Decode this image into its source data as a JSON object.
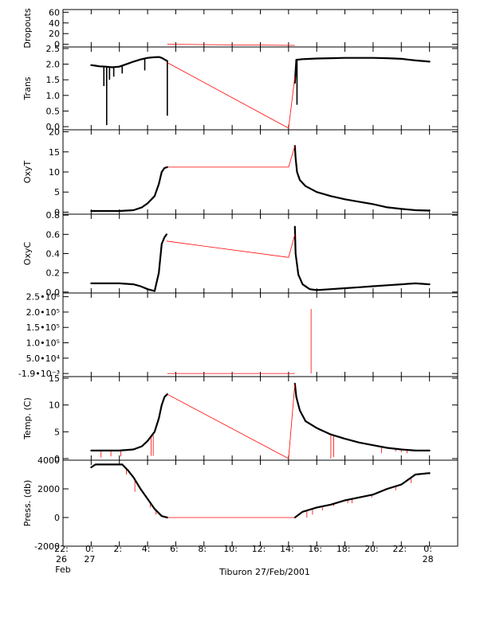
{
  "chart_data": [
    {
      "type": "line",
      "ylabel": "Dropouts",
      "yticks": [
        "60",
        "40",
        "20",
        "0"
      ],
      "ylim": [
        -5,
        65
      ],
      "series": [
        {
          "color": "#000000",
          "x": [
            0.0,
            5.4,
            14.45,
            24.0
          ],
          "y": [
            0,
            0,
            0,
            0
          ]
        },
        {
          "color": "#ff0000",
          "x": [
            5.4,
            14.45
          ],
          "y": [
            0,
            -2
          ]
        }
      ]
    },
    {
      "type": "line",
      "ylabel": "Trans",
      "yticks": [
        "2.5",
        "2.0",
        "1.5",
        "1.0",
        "0.5",
        "0.0"
      ],
      "ylim": [
        -0.1,
        2.55
      ],
      "series": [
        {
          "color": "#000000",
          "x": [
            0.0,
            0.3,
            0.6,
            1.0,
            1.5,
            2.0,
            2.5,
            3.0,
            3.5,
            4.0,
            4.4,
            4.8,
            5.0,
            5.4,
            14.45,
            14.55,
            15.0,
            16.0,
            17.0,
            18.0,
            19.0,
            20.0,
            21.0,
            22.0,
            23.0,
            24.0
          ],
          "y": [
            1.97,
            1.95,
            1.93,
            1.92,
            1.9,
            1.92,
            2.0,
            2.08,
            2.15,
            2.2,
            2.22,
            2.23,
            2.2,
            2.1,
            1.4,
            2.14,
            2.16,
            2.18,
            2.19,
            2.2,
            2.2,
            2.2,
            2.19,
            2.17,
            2.12,
            2.08
          ]
        },
        {
          "color": "#ff0000",
          "x": [
            5.4,
            14.0,
            14.45
          ],
          "y": [
            2.05,
            -0.05,
            1.6
          ]
        }
      ],
      "spikes": [
        {
          "color": "#000000",
          "x": [
            0.9,
            1.1,
            1.3,
            1.6,
            2.2,
            3.8,
            5.4,
            14.6
          ],
          "y": [
            1.3,
            0.05,
            1.5,
            1.6,
            1.7,
            1.8,
            0.35,
            0.7
          ]
        }
      ]
    },
    {
      "type": "line",
      "ylabel": "OxyT",
      "yticks": [
        "20",
        "15",
        "10",
        "5",
        "0"
      ],
      "ylim": [
        -0.5,
        20.5
      ],
      "series": [
        {
          "color": "#000000",
          "x": [
            0.0,
            2.0,
            3.0,
            3.6,
            4.0,
            4.5,
            4.8,
            5.0,
            5.2,
            5.4,
            14.45,
            14.5,
            14.6,
            14.8,
            15.2,
            16.0,
            17.0,
            18.0,
            19.0,
            20.0,
            21.0,
            22.0,
            23.0,
            24.0
          ],
          "y": [
            0.3,
            0.3,
            0.5,
            1.2,
            2.2,
            4.0,
            7.0,
            10.0,
            11.0,
            11.2,
            16.5,
            13.5,
            10.0,
            8.0,
            6.5,
            5.0,
            4.0,
            3.2,
            2.6,
            2.0,
            1.2,
            0.8,
            0.5,
            0.4
          ]
        },
        {
          "color": "#ff0000",
          "x": [
            5.4,
            14.0,
            14.45
          ],
          "y": [
            11.2,
            11.2,
            16.5
          ]
        }
      ]
    },
    {
      "type": "line",
      "ylabel": "OxyC",
      "yticks": [
        "0.8",
        "0.6",
        "0.4",
        "0.2",
        "0.0"
      ],
      "ylim": [
        -0.01,
        0.81
      ],
      "series": [
        {
          "color": "#000000",
          "x": [
            0.0,
            2.0,
            3.0,
            3.5,
            4.0,
            4.5,
            4.8,
            5.0,
            5.2,
            5.35,
            14.45,
            14.5,
            14.7,
            15.0,
            15.5,
            16.0,
            17.0,
            18.0,
            19.0,
            20.0,
            21.0,
            22.0,
            23.0,
            24.0
          ],
          "y": [
            0.09,
            0.09,
            0.08,
            0.06,
            0.03,
            0.01,
            0.2,
            0.5,
            0.57,
            0.6,
            0.68,
            0.4,
            0.18,
            0.08,
            0.03,
            0.02,
            0.03,
            0.04,
            0.05,
            0.06,
            0.07,
            0.08,
            0.09,
            0.08
          ]
        },
        {
          "color": "#ff0000",
          "x": [
            5.35,
            14.0,
            14.45
          ],
          "y": [
            0.53,
            0.36,
            0.6
          ]
        }
      ]
    },
    {
      "type": "line",
      "ylabel": "",
      "yticks": [
        "2.5•10⁵",
        "2.0•10⁵",
        "1.5•10⁵",
        "1.0•10⁵",
        "5.0•10⁴",
        "-1.9•10⁻³"
      ],
      "ylim": [
        -10000,
        262000
      ],
      "series": [
        {
          "color": "#000000",
          "x": [
            0.0,
            5.4,
            14.45,
            24.0
          ],
          "y": [
            0,
            0,
            0,
            0
          ]
        },
        {
          "color": "#ff0000",
          "x": [
            5.4,
            14.45
          ],
          "y": [
            0,
            0
          ]
        }
      ],
      "spikes": [
        {
          "color": "#ff0000",
          "x": [
            15.6
          ],
          "y": [
            210000
          ]
        }
      ]
    },
    {
      "type": "line",
      "ylabel": "Temp. (C)",
      "yticks": [
        "15",
        "10",
        "5",
        "0"
      ],
      "ylim": [
        -0.3,
        15.3
      ],
      "series": [
        {
          "color": "#000000",
          "x": [
            0.0,
            2.0,
            3.0,
            3.6,
            4.0,
            4.5,
            4.8,
            5.0,
            5.2,
            5.4,
            14.45,
            14.55,
            14.8,
            15.2,
            16.0,
            17.0,
            18.0,
            19.0,
            20.0,
            21.0,
            22.0,
            23.0,
            24.0
          ],
          "y": [
            1.5,
            1.5,
            1.7,
            2.3,
            3.3,
            5.0,
            7.5,
            10.0,
            11.5,
            12.0,
            14.0,
            11.5,
            9.0,
            7.0,
            5.7,
            4.5,
            3.7,
            3.0,
            2.5,
            2.0,
            1.7,
            1.5,
            1.5
          ]
        },
        {
          "color": "#ff0000",
          "x": [
            5.4,
            14.0,
            14.45
          ],
          "y": [
            12.0,
            0.0,
            14.0
          ]
        }
      ],
      "spikes": [
        {
          "color": "#ff0000",
          "x": [
            0.7,
            1.4,
            2.1,
            4.25,
            4.4,
            17.0,
            17.2,
            20.6,
            21.6,
            22.0,
            22.4
          ],
          "y": [
            0.2,
            0.4,
            0.4,
            0.5,
            0.5,
            0.0,
            0.3,
            1.0,
            1.3,
            1.2,
            1.0
          ]
        }
      ]
    },
    {
      "type": "line",
      "ylabel": "Press. (db)",
      "yticks": [
        "4000",
        "2000",
        "0",
        "-2000"
      ],
      "ylim": [
        -2000,
        4000
      ],
      "series": [
        {
          "color": "#000000",
          "x": [
            0.0,
            0.3,
            0.6,
            2.2,
            2.6,
            3.0,
            3.5,
            4.0,
            4.5,
            5.0,
            5.4,
            14.45,
            15.0,
            16.0,
            17.0,
            18.0,
            19.0,
            20.0,
            21.0,
            22.0,
            23.0,
            24.0
          ],
          "y": [
            3500,
            3700,
            3700,
            3700,
            3300,
            2800,
            2000,
            1300,
            600,
            100,
            0,
            0,
            400,
            700,
            900,
            1200,
            1400,
            1600,
            2000,
            2300,
            3000,
            3100
          ]
        },
        {
          "color": "#ff0000",
          "x": [
            5.4,
            14.45
          ],
          "y": [
            0,
            0
          ]
        }
      ],
      "spikes": [
        {
          "color": "#ff0000",
          "x": [
            2.5,
            2.75,
            3.1,
            4.2,
            4.6,
            15.3,
            15.7,
            16.4,
            17.2,
            18.2,
            18.5,
            19.9,
            21.6,
            22.7,
            24.0
          ],
          "y": [
            3000,
            3000,
            1800,
            700,
            200,
            0,
            200,
            500,
            800,
            1000,
            1000,
            1400,
            1900,
            2400,
            3000
          ]
        }
      ]
    }
  ],
  "x_axis": {
    "xlim": [
      -2.0,
      26.0
    ],
    "major_ticks": [
      -2,
      0,
      2,
      4,
      6,
      8,
      10,
      12,
      14,
      16,
      18,
      20,
      22,
      24
    ],
    "minor_step": 0.5,
    "tick_labels": [
      {
        "x": -2,
        "lines": [
          "22:",
          "26",
          "Feb"
        ]
      },
      {
        "x": 0,
        "lines": [
          "0:",
          "27"
        ]
      },
      {
        "x": 2,
        "lines": [
          "2:"
        ]
      },
      {
        "x": 4,
        "lines": [
          "4:"
        ]
      },
      {
        "x": 6,
        "lines": [
          "6:"
        ]
      },
      {
        "x": 8,
        "lines": [
          "8:"
        ]
      },
      {
        "x": 10,
        "lines": [
          "10:"
        ]
      },
      {
        "x": 12,
        "lines": [
          "12:"
        ]
      },
      {
        "x": 14,
        "lines": [
          "14:"
        ]
      },
      {
        "x": 16,
        "lines": [
          "16:"
        ]
      },
      {
        "x": 18,
        "lines": [
          "18:"
        ]
      },
      {
        "x": 20,
        "lines": [
          "20:"
        ]
      },
      {
        "x": 22,
        "lines": [
          "22:"
        ]
      },
      {
        "x": 24,
        "lines": [
          "0:",
          "28"
        ]
      }
    ],
    "title": "Tiburon 27/Feb/2001"
  }
}
